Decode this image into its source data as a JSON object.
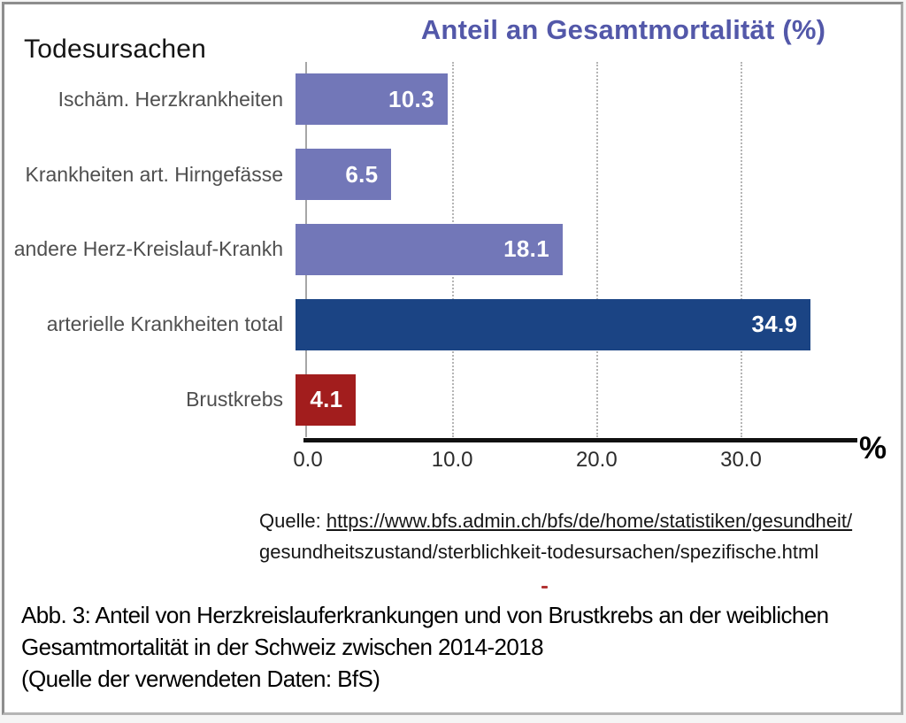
{
  "figure": {
    "category_header": "Todesursachen",
    "source": {
      "prefix": "Quelle: ",
      "link_text": "https://www.bfs.admin.ch/bfs/de/home/statistiken/gesundheit/",
      "line2": "gesundheitszustand/sterblichkeit-todesursachen/spezifische.html"
    },
    "caption_lines": [
      "Abb. 3: Anteil von Herzkreislauferkrankungen und von Brustkrebs an der weiblichen",
      "Gesamtmortalität in der Schweiz zwischen 2014-2018",
      "(Quelle der verwendeten Daten: BfS)"
    ]
  },
  "chart_data": {
    "type": "bar",
    "orientation": "horizontal",
    "title": "Anteil an Gesamtmortalität (%)",
    "category_axis_title": "Todesursachen",
    "categories": [
      "Ischäm. Herzkrankheiten",
      "Krankheiten art. Hirngefässe",
      "andere Herz-Kreislauf-Krankh",
      "arterielle Krankheiten total",
      "Brustkrebs"
    ],
    "values": [
      10.3,
      6.5,
      18.1,
      34.9,
      4.1
    ],
    "value_labels": [
      "10.3",
      "6.5",
      "18.1",
      "34.9",
      "4.1"
    ],
    "bar_colors": [
      "#7277b8",
      "#7277b8",
      "#7277b8",
      "#1b4484",
      "#a21d1d"
    ],
    "xlim": [
      0,
      38
    ],
    "x_ticks": [
      0,
      10,
      20,
      30
    ],
    "x_tick_labels": [
      "0.0",
      "10.0",
      "20.0",
      "30.0"
    ],
    "x_unit_label": "%",
    "grid": "dotted-vertical",
    "legend": "none",
    "colors": {
      "title": "#5358a9",
      "bar_default": "#7277b8",
      "bar_highlight": "#1b4484",
      "bar_accent": "#a21d1d",
      "axis": "#101010",
      "gridline": "#b5b5b5"
    }
  }
}
